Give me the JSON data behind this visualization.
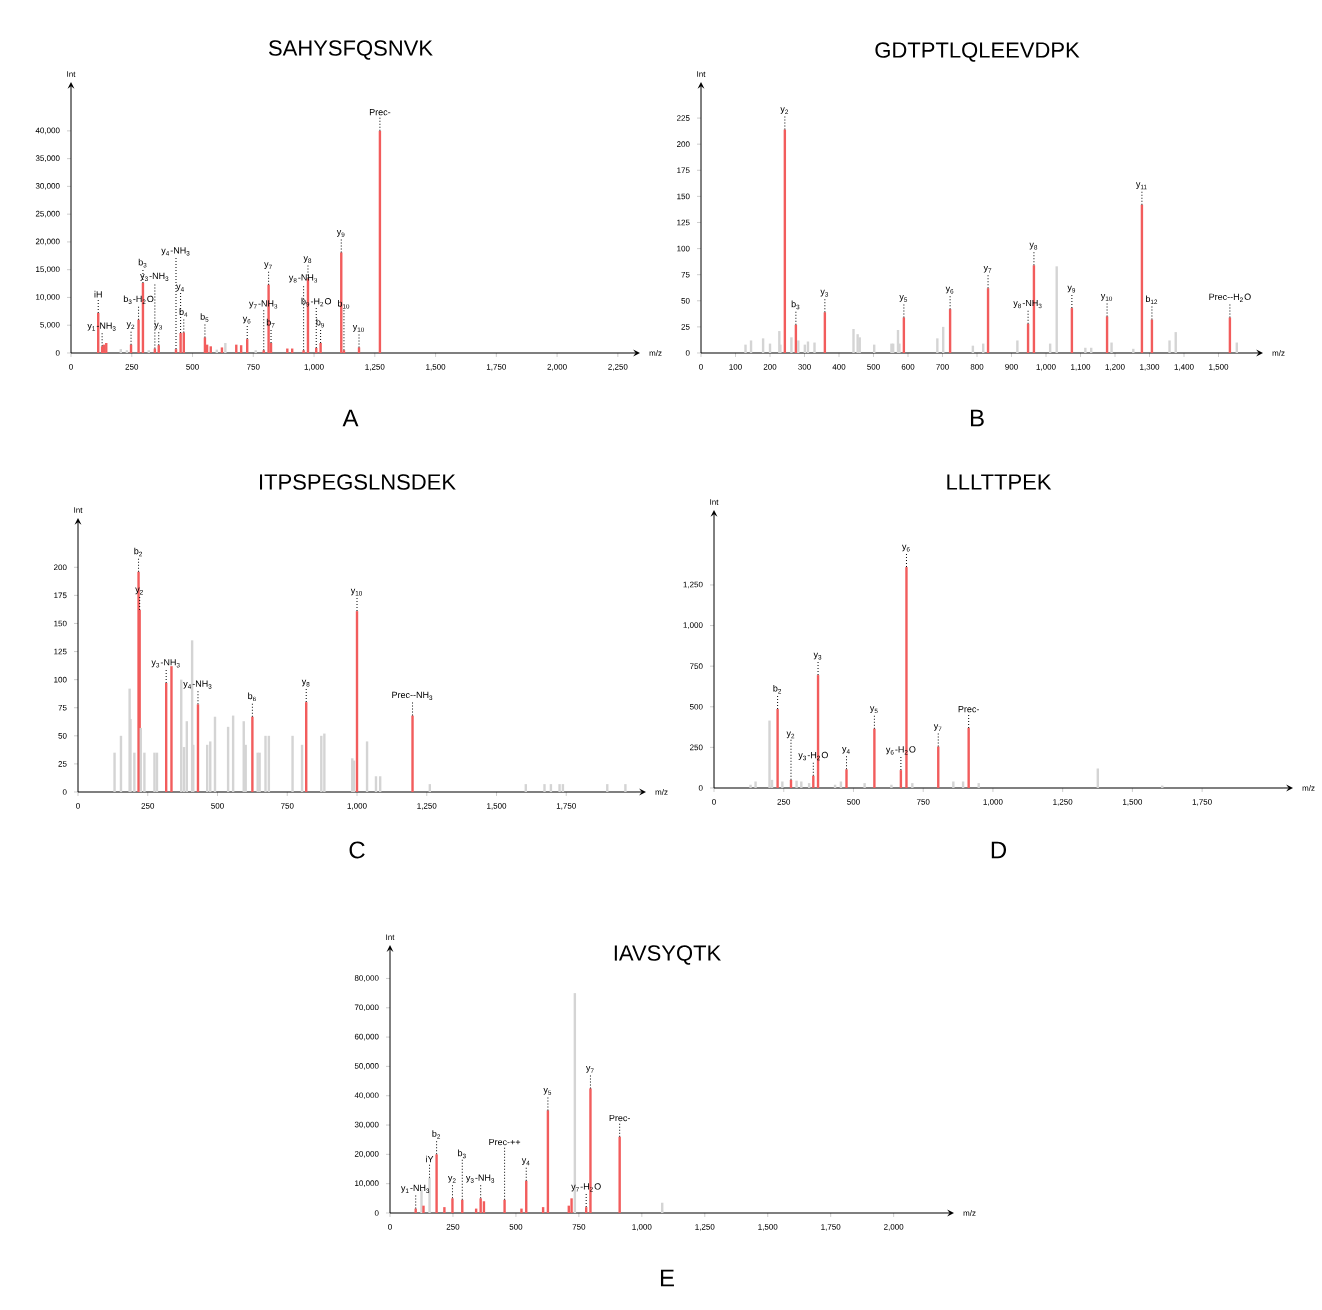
{
  "chart_data": [
    {
      "type": "bar",
      "title": "SAHYSFQSNVK",
      "xlabel": "m/z",
      "ylabel": "Int",
      "xlim": [
        0,
        2300
      ],
      "ylim": [
        0,
        47000
      ],
      "xticks": [
        0,
        250,
        500,
        750,
        {
          "value": 1000,
          "label": "1,000"
        },
        {
          "value": 1250,
          "label": "1,250"
        },
        {
          "value": 1500,
          "label": "1,500"
        },
        {
          "value": 1750,
          "label": "1,750"
        },
        {
          "value": 2000,
          "label": "2,000"
        },
        {
          "value": 2250,
          "label": "2,250"
        }
      ],
      "yticks": [
        0,
        {
          "value": 5000,
          "label": "5,000"
        },
        {
          "value": 10000,
          "label": "10,000"
        },
        {
          "value": 15000,
          "label": "15,000"
        },
        {
          "value": 20000,
          "label": "20,000"
        },
        {
          "value": 25000,
          "label": "25,000"
        },
        {
          "value": 30000,
          "label": "30,000"
        },
        {
          "value": 35000,
          "label": "35,000"
        },
        {
          "value": 40000,
          "label": "40,000"
        }
      ],
      "x": [
        112,
        128,
        135,
        145,
        205,
        230,
        247,
        278,
        296,
        320,
        345,
        361,
        432,
        451,
        464,
        551,
        560,
        575,
        600,
        621,
        635,
        680,
        700,
        725,
        760,
        793,
        813,
        823,
        890,
        910,
        957,
        975,
        1009,
        1027,
        1112,
        1123,
        1185,
        1271
      ],
      "values": [
        7200,
        1200,
        1500,
        1800,
        700,
        500,
        1500,
        6000,
        12600,
        500,
        800,
        1400,
        700,
        3600,
        3700,
        2800,
        1500,
        1200,
        600,
        1000,
        1800,
        1500,
        1400,
        2500,
        500,
        500,
        12300,
        1800,
        800,
        800,
        500,
        13400,
        900,
        1800,
        18100,
        500,
        1000,
        40000
      ],
      "colors": [
        "#f25c5c",
        "#f25c5c",
        "#f25c5c",
        "#f25c5c",
        "#d4d4d4",
        "#d4d4d4",
        "#f25c5c",
        "#f25c5c",
        "#f25c5c",
        "#d4d4d4",
        "#f25c5c",
        "#f25c5c",
        "#f25c5c",
        "#f25c5c",
        "#f25c5c",
        "#f25c5c",
        "#f25c5c",
        "#f25c5c",
        "#d4d4d4",
        "#f25c5c",
        "#d4d4d4",
        "#f25c5c",
        "#f25c5c",
        "#f25c5c",
        "#d4d4d4",
        "#f25c5c",
        "#f25c5c",
        "#f25c5c",
        "#f25c5c",
        "#f25c5c",
        "#f25c5c",
        "#f25c5c",
        "#f25c5c",
        "#f25c5c",
        "#f25c5c",
        "#f25c5c",
        "#f25c5c",
        "#f25c5c"
      ],
      "annotations": [
        {
          "text": "iH",
          "x": 112,
          "y": 7200
        },
        {
          "text": "y$_{1}$-NH$_{3}$",
          "x": 128,
          "y": 1200
        },
        {
          "text": "y$_{2}$",
          "x": 247,
          "y": 1500
        },
        {
          "text": "b$_{3}$-H$_{2}$O",
          "x": 278,
          "y": 6000
        },
        {
          "text": "b$_{3}$",
          "x": 296,
          "y": 12600
        },
        {
          "text": "y$_{3}$-NH$_{3}$",
          "x": 345,
          "y": 800
        },
        {
          "text": "y$_{3}$",
          "x": 361,
          "y": 1400
        },
        {
          "text": "y$_{4}$-NH$_{3}$",
          "x": 432,
          "y": 700
        },
        {
          "text": "y$_{4}$",
          "x": 451,
          "y": 3600
        },
        {
          "text": "b$_{4}$",
          "x": 464,
          "y": 3700
        },
        {
          "text": "b$_{5}$",
          "x": 551,
          "y": 2800
        },
        {
          "text": "y$_{6}$",
          "x": 725,
          "y": 2500
        },
        {
          "text": "y$_{7}$-NH$_{3}$",
          "x": 793,
          "y": 500
        },
        {
          "text": "y$_{7}$",
          "x": 813,
          "y": 12300
        },
        {
          "text": "b$_{7}$",
          "x": 823,
          "y": 1800
        },
        {
          "text": "y$_{8}$-NH$_{3}$",
          "x": 957,
          "y": 500
        },
        {
          "text": "y$_{8}$",
          "x": 975,
          "y": 13400
        },
        {
          "text": "b$_{9}$-H$_{2}$O",
          "x": 1009,
          "y": 900
        },
        {
          "text": "b$_{9}$",
          "x": 1027,
          "y": 1800
        },
        {
          "text": "y$_{9}$",
          "x": 1112,
          "y": 18100
        },
        {
          "text": "b$_{10}$",
          "x": 1123,
          "y": 500
        },
        {
          "text": "y$_{10}$",
          "x": 1185,
          "y": 1000
        },
        {
          "text": "Prec-",
          "x": 1271,
          "y": 40000
        },
        "A"
      ]
    },
    {
      "type": "bar",
      "title": "GDTPTLQLEEVDPK",
      "xlabel": "m/z",
      "ylabel": "Int",
      "xlim": [
        0,
        1600
      ],
      "ylim": [
        0,
        250
      ],
      "xticks": [
        0,
        100,
        200,
        300,
        400,
        500,
        600,
        700,
        800,
        900,
        {
          "value": 1000,
          "label": "1,000"
        },
        {
          "value": 1100,
          "label": "1,100"
        },
        {
          "value": 1200,
          "label": "1,200"
        },
        {
          "value": 1300,
          "label": "1,300"
        },
        {
          "value": 1400,
          "label": "1,400"
        },
        {
          "value": 1500,
          "label": "1,500"
        }
      ],
      "yticks": [
        0,
        25,
        50,
        75,
        100,
        125,
        150,
        175,
        200,
        225
      ],
      "x": [
        129,
        145,
        180,
        200,
        227,
        230,
        243,
        262,
        275,
        282,
        301,
        310,
        329,
        359,
        442,
        454,
        460,
        502,
        552,
        557,
        571,
        575,
        588,
        685,
        702,
        722,
        788,
        818,
        832,
        917,
        948,
        965,
        1012,
        1031,
        1075,
        1114,
        1131,
        1177,
        1190,
        1253,
        1278,
        1307,
        1358,
        1376,
        1533,
        1553
      ],
      "values": [
        8,
        12,
        14,
        9,
        21,
        8,
        214,
        15,
        27,
        12,
        8,
        11,
        10,
        39,
        23,
        18,
        15,
        8,
        9,
        9,
        22,
        9,
        34,
        14,
        25,
        42,
        7,
        9,
        62,
        12,
        28,
        84,
        9,
        83,
        43,
        5,
        5,
        35,
        10,
        4,
        142,
        32,
        12,
        20,
        34,
        10
      ],
      "colors": [
        "#d4d4d4",
        "#d4d4d4",
        "#d4d4d4",
        "#d4d4d4",
        "#d4d4d4",
        "#d4d4d4",
        "#f25c5c",
        "#d4d4d4",
        "#f25c5c",
        "#d4d4d4",
        "#d4d4d4",
        "#d4d4d4",
        "#d4d4d4",
        "#f25c5c",
        "#d4d4d4",
        "#d4d4d4",
        "#d4d4d4",
        "#d4d4d4",
        "#d4d4d4",
        "#d4d4d4",
        "#d4d4d4",
        "#d4d4d4",
        "#f25c5c",
        "#d4d4d4",
        "#d4d4d4",
        "#f25c5c",
        "#d4d4d4",
        "#d4d4d4",
        "#f25c5c",
        "#d4d4d4",
        "#f25c5c",
        "#f25c5c",
        "#d4d4d4",
        "#d4d4d4",
        "#f25c5c",
        "#d4d4d4",
        "#d4d4d4",
        "#f25c5c",
        "#d4d4d4",
        "#d4d4d4",
        "#f25c5c",
        "#f25c5c",
        "#d4d4d4",
        "#d4d4d4",
        "#f25c5c",
        "#d4d4d4"
      ],
      "annotations": [
        {
          "text": "y$_{2}$",
          "x": 243,
          "y": 214
        },
        {
          "text": "b$_{3}$",
          "x": 275,
          "y": 27
        },
        {
          "text": "y$_{3}$",
          "x": 359,
          "y": 39
        },
        {
          "text": "y$_{5}$",
          "x": 588,
          "y": 34
        },
        {
          "text": "y$_{6}$",
          "x": 722,
          "y": 42
        },
        {
          "text": "y$_{7}$",
          "x": 832,
          "y": 62
        },
        {
          "text": "y$_{8}$-NH$_{3}$",
          "x": 948,
          "y": 28
        },
        {
          "text": "y$_{8}$",
          "x": 965,
          "y": 84
        },
        {
          "text": "y$_{9}$",
          "x": 1075,
          "y": 43
        },
        {
          "text": "y$_{10}$",
          "x": 1177,
          "y": 35
        },
        {
          "text": "y$_{11}$",
          "x": 1278,
          "y": 142
        },
        {
          "text": "b$_{12}$",
          "x": 1307,
          "y": 32
        },
        {
          "text": "Prec--H$_{2}$O",
          "x": 1533,
          "y": 34
        },
        "B"
      ]
    },
    {
      "type": "bar",
      "title": "ITPSPEGSLNSDEK",
      "xlabel": "m/z",
      "ylabel": "Int",
      "xlim": [
        0,
        2000
      ],
      "ylim": [
        0,
        235
      ],
      "xticks": [
        0,
        250,
        500,
        750,
        {
          "value": 1000,
          "label": "1,000"
        },
        {
          "value": 1250,
          "label": "1,250"
        },
        {
          "value": 1500,
          "label": "1,500"
        },
        {
          "value": 1750,
          "label": "1,750"
        }
      ],
      "yticks": [
        0,
        25,
        50,
        75,
        100,
        125,
        150,
        175,
        200
      ],
      "x": [
        131,
        154,
        185,
        188,
        202,
        217,
        221,
        225,
        238,
        274,
        283,
        316,
        335,
        370,
        380,
        390,
        409,
        413,
        430,
        463,
        474,
        491,
        538,
        556,
        594,
        601,
        625,
        644,
        651,
        672,
        684,
        769,
        803,
        818,
        872,
        883,
        983,
        989,
        1000,
        1036,
        1068,
        1083,
        1199,
        1261,
        1605,
        1672,
        1695,
        1726,
        1738,
        1897,
        1962
      ],
      "values": [
        35,
        50,
        92,
        65,
        35,
        196,
        162,
        57,
        35,
        35,
        35,
        97,
        112,
        100,
        40,
        63,
        135,
        42,
        78,
        42,
        45,
        67,
        58,
        68,
        63,
        42,
        67,
        35,
        35,
        50,
        50,
        50,
        42,
        80,
        50,
        52,
        30,
        28,
        161,
        45,
        14,
        14,
        68,
        7,
        7,
        7,
        7,
        7,
        7,
        7,
        7
      ],
      "colors": [
        "#d4d4d4",
        "#d4d4d4",
        "#d4d4d4",
        "#d4d4d4",
        "#d4d4d4",
        "#f25c5c",
        "#f25c5c",
        "#d4d4d4",
        "#d4d4d4",
        "#d4d4d4",
        "#d4d4d4",
        "#f25c5c",
        "#f25c5c",
        "#d4d4d4",
        "#d4d4d4",
        "#d4d4d4",
        "#d4d4d4",
        "#d4d4d4",
        "#f25c5c",
        "#d4d4d4",
        "#d4d4d4",
        "#d4d4d4",
        "#d4d4d4",
        "#d4d4d4",
        "#d4d4d4",
        "#d4d4d4",
        "#f25c5c",
        "#d4d4d4",
        "#d4d4d4",
        "#d4d4d4",
        "#d4d4d4",
        "#d4d4d4",
        "#d4d4d4",
        "#f25c5c",
        "#d4d4d4",
        "#d4d4d4",
        "#d4d4d4",
        "#d4d4d4",
        "#f25c5c",
        "#d4d4d4",
        "#d4d4d4",
        "#d4d4d4",
        "#f25c5c",
        "#d4d4d4",
        "#d4d4d4",
        "#d4d4d4",
        "#d4d4d4",
        "#d4d4d4",
        "#d4d4d4",
        "#d4d4d4",
        "#d4d4d4"
      ],
      "annotations": [
        {
          "text": "b$_{2}$",
          "x": 217,
          "y": 196
        },
        {
          "text": "y$_{2}$",
          "x": 221,
          "y": 162
        },
        {
          "text": "y$_{3}$-NH$_{3}$",
          "x": 316,
          "y": 97
        },
        {
          "text": "y$_{4}$-NH$_{3}$",
          "x": 430,
          "y": 78
        },
        {
          "text": "b$_{6}$",
          "x": 625,
          "y": 67
        },
        {
          "text": "y$_{8}$",
          "x": 818,
          "y": 80
        },
        {
          "text": "y$_{10}$",
          "x": 1000,
          "y": 161
        },
        {
          "text": "Prec--NH$_{3}$",
          "x": 1199,
          "y": 68
        },
        "C"
      ]
    },
    {
      "type": "bar",
      "title": "LLLTTPEK",
      "xlabel": "m/z",
      "ylabel": "Int",
      "xlim": [
        0,
        2040
      ],
      "ylim": [
        0,
        1650
      ],
      "xticks": [
        0,
        250,
        500,
        750,
        {
          "value": 1000,
          "label": "1,000"
        },
        {
          "value": 1250,
          "label": "1,250"
        },
        {
          "value": 1500,
          "label": "1,500"
        },
        {
          "value": 1750,
          "label": "1,750"
        }
      ],
      "yticks": [
        0,
        250,
        500,
        750,
        {
          "value": 1000,
          "label": "1,000"
        },
        {
          "value": 1250,
          "label": "1,250"
        }
      ],
      "x": [
        131,
        149,
        199,
        208,
        228,
        245,
        276,
        296,
        313,
        341,
        356,
        373,
        434,
        455,
        475,
        540,
        575,
        636,
        670,
        690,
        711,
        804,
        858,
        893,
        913,
        949,
        1376,
        1607
      ],
      "values": [
        20,
        40,
        415,
        50,
        486,
        40,
        50,
        45,
        40,
        30,
        75,
        695,
        20,
        40,
        115,
        30,
        365,
        20,
        110,
        1360,
        30,
        255,
        40,
        40,
        370,
        30,
        120,
        15
      ],
      "colors": [
        "#d4d4d4",
        "#d4d4d4",
        "#d4d4d4",
        "#d4d4d4",
        "#f25c5c",
        "#d4d4d4",
        "#f25c5c",
        "#d4d4d4",
        "#d4d4d4",
        "#d4d4d4",
        "#f25c5c",
        "#f25c5c",
        "#d4d4d4",
        "#d4d4d4",
        "#f25c5c",
        "#d4d4d4",
        "#f25c5c",
        "#d4d4d4",
        "#f25c5c",
        "#f25c5c",
        "#d4d4d4",
        "#f25c5c",
        "#d4d4d4",
        "#d4d4d4",
        "#f25c5c",
        "#d4d4d4",
        "#d4d4d4",
        "#d4d4d4"
      ],
      "annotations": [
        {
          "text": "b$_{2}$",
          "x": 228,
          "y": 486
        },
        {
          "text": "y$_{2}$",
          "x": 276,
          "y": 50
        },
        {
          "text": "y$_{3}$-H$_{2}$O",
          "x": 356,
          "y": 75
        },
        {
          "text": "y$_{3}$",
          "x": 373,
          "y": 695
        },
        {
          "text": "y$_{4}$",
          "x": 475,
          "y": 115
        },
        {
          "text": "y$_{5}$",
          "x": 575,
          "y": 365
        },
        {
          "text": "y$_{6}$-H$_{2}$O",
          "x": 670,
          "y": 110
        },
        {
          "text": "y$_{6}$",
          "x": 690,
          "y": 1360
        },
        {
          "text": "y$_{7}$",
          "x": 804,
          "y": 255
        },
        {
          "text": "Prec-",
          "x": 913,
          "y": 370
        },
        "D"
      ]
    },
    {
      "type": "bar",
      "title": "IAVSYQTK",
      "xlabel": "m/z",
      "ylabel": "Int",
      "xlim": [
        0,
        2200
      ],
      "ylim": [
        0,
        88000
      ],
      "xticks": [
        0,
        250,
        500,
        750,
        {
          "value": 1000,
          "label": "1,000"
        },
        {
          "value": 1250,
          "label": "1,250"
        },
        {
          "value": 1500,
          "label": "1,500"
        },
        {
          "value": 1750,
          "label": "1,750"
        },
        {
          "value": 2000,
          "label": "2,000"
        }
      ],
      "yticks": [
        0,
        {
          "value": 10000,
          "label": "10,000"
        },
        {
          "value": 20000,
          "label": "20,000"
        },
        {
          "value": 30000,
          "label": "30,000"
        },
        {
          "value": 40000,
          "label": "40,000"
        },
        {
          "value": 50000,
          "label": "50,000"
        },
        {
          "value": 60000,
          "label": "60,000"
        },
        {
          "value": 70000,
          "label": "70,000"
        },
        {
          "value": 80000,
          "label": "80,000"
        }
      ],
      "x": [
        102,
        125,
        133,
        157,
        185,
        216,
        248,
        287,
        342,
        360,
        373,
        455,
        522,
        541,
        608,
        627,
        710,
        721,
        734,
        779,
        796,
        912,
        1081
      ],
      "values": [
        1500,
        8000,
        2500,
        12000,
        20000,
        2000,
        5000,
        4500,
        1500,
        5000,
        4000,
        4500,
        1500,
        11000,
        2000,
        35000,
        2500,
        5000,
        75000,
        2000,
        42500,
        26000,
        3500
      ],
      "colors": [
        "#f25c5c",
        "#d4d4d4",
        "#f25c5c",
        "#d4d4d4",
        "#f25c5c",
        "#f25c5c",
        "#f25c5c",
        "#f25c5c",
        "#f25c5c",
        "#f25c5c",
        "#f25c5c",
        "#f25c5c",
        "#f25c5c",
        "#f25c5c",
        "#f25c5c",
        "#f25c5c",
        "#f25c5c",
        "#f25c5c",
        "#d4d4d4",
        "#f25c5c",
        "#f25c5c",
        "#f25c5c",
        "#d4d4d4"
      ],
      "annotations": [
        {
          "text": "y$_{1}$-NH$_{3}$",
          "x": 102,
          "y": 1500
        },
        {
          "text": "iY",
          "x": 157,
          "y": 12000
        },
        {
          "text": "b$_{2}$",
          "x": 185,
          "y": 20000
        },
        {
          "text": "y$_{2}$",
          "x": 248,
          "y": 5000
        },
        {
          "text": "b$_{3}$",
          "x": 287,
          "y": 4500
        },
        {
          "text": "y$_{3}$-NH$_{3}$",
          "x": 360,
          "y": 5000
        },
        {
          "text": "Prec-++",
          "x": 455,
          "y": 4500
        },
        {
          "text": "y$_{4}$",
          "x": 541,
          "y": 11000
        },
        {
          "text": "y$_{5}$",
          "x": 627,
          "y": 35000
        },
        {
          "text": "y$_{7}$-H$_{2}$O",
          "x": 779,
          "y": 2000
        },
        {
          "text": "y$_{7}$",
          "x": 796,
          "y": 42500
        },
        {
          "text": "Prec-",
          "x": 912,
          "y": 26000
        },
        "E"
      ]
    }
  ]
}
